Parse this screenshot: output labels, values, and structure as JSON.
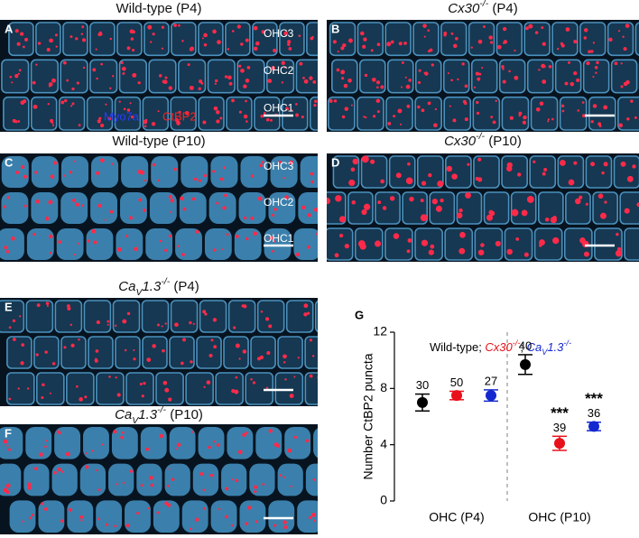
{
  "panels": [
    {
      "label": "A",
      "title": [
        {
          "text": "Wild-type (P4)"
        }
      ],
      "cell_labels": [
        "OHC3",
        "OHC2",
        "OHC1"
      ],
      "stain_labels": [
        {
          "text": "Myo7a",
          "color": "#2a3cff"
        },
        {
          "text": "CtBP2",
          "color": "#ff2020"
        }
      ]
    },
    {
      "label": "B",
      "title": [
        {
          "text": "Cx30",
          "italic": true
        },
        {
          "text": "-/-",
          "sup": true,
          "italic": true
        },
        {
          "text": " (P4)"
        }
      ]
    },
    {
      "label": "C",
      "title": [
        {
          "text": "Wild-type (P10)"
        }
      ],
      "cell_labels": [
        "OHC3",
        "OHC2",
        "OHC1"
      ]
    },
    {
      "label": "D",
      "title": [
        {
          "text": "Cx30",
          "italic": true
        },
        {
          "text": "-/-",
          "sup": true,
          "italic": true
        },
        {
          "text": " (P10)"
        }
      ]
    },
    {
      "label": "E",
      "title": [
        {
          "text": "Ca",
          "italic": true
        },
        {
          "text": "V",
          "sub": true,
          "italic": true
        },
        {
          "text": "1.3",
          "italic": true
        },
        {
          "text": "-/-",
          "sup": true,
          "italic": true
        },
        {
          "text": " (P4)"
        }
      ]
    },
    {
      "label": "F",
      "title": [
        {
          "text": "Ca",
          "italic": true
        },
        {
          "text": "V",
          "sub": true,
          "italic": true
        },
        {
          "text": "1.3",
          "italic": true
        },
        {
          "text": "-/-",
          "sup": true,
          "italic": true
        },
        {
          "text": " (P10)"
        }
      ]
    }
  ],
  "chart_data": {
    "type": "scatter",
    "label": "G",
    "ylabel": "Number CtBP2 puncta",
    "categories": [
      "OHC (P4)",
      "OHC (P10)"
    ],
    "ylim": [
      0,
      12
    ],
    "yticks": [
      0,
      4,
      8,
      12
    ],
    "legend_separator": "; ",
    "series": [
      {
        "name": [
          {
            "text": "Wild-type"
          }
        ],
        "color": "#000000",
        "values": [
          7.0,
          9.7
        ],
        "errors": [
          0.6,
          0.7
        ],
        "n_labels": [
          30,
          40
        ],
        "significance": [
          null,
          null
        ]
      },
      {
        "name": [
          {
            "text": "Cx30",
            "italic": true
          },
          {
            "text": "-/-",
            "sup": true,
            "italic": true
          }
        ],
        "color": "#e8101a",
        "values": [
          7.5,
          4.1
        ],
        "errors": [
          0.3,
          0.5
        ],
        "n_labels": [
          50,
          39
        ],
        "significance": [
          null,
          "***"
        ]
      },
      {
        "name": [
          {
            "text": "Ca",
            "italic": true
          },
          {
            "text": "V",
            "sub": true,
            "italic": true
          },
          {
            "text": "1.3",
            "italic": true
          },
          {
            "text": "-/-",
            "sup": true,
            "italic": true
          }
        ],
        "color": "#1428d0",
        "values": [
          7.5,
          5.3
        ],
        "errors": [
          0.4,
          0.3
        ],
        "n_labels": [
          27,
          36
        ],
        "significance": [
          null,
          "***"
        ]
      }
    ]
  }
}
